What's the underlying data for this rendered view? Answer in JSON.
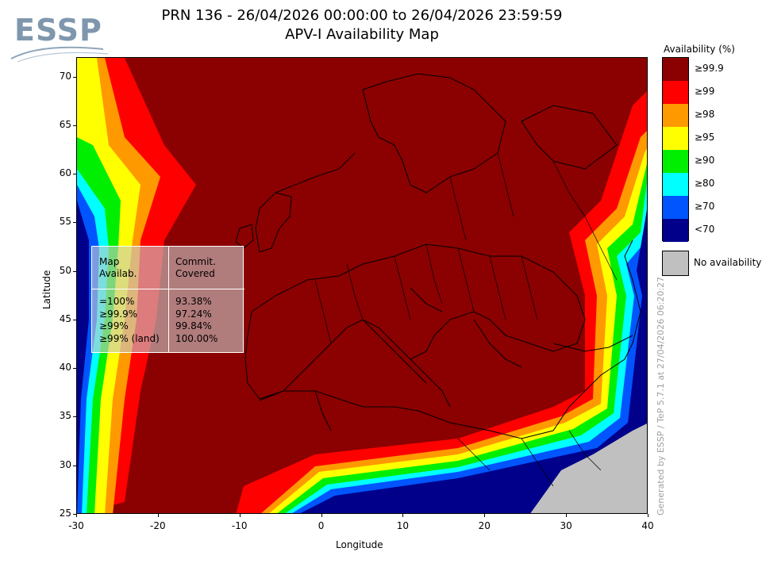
{
  "logo": {
    "text": "ESSP"
  },
  "title": {
    "line1": "PRN 136 - 26/04/2026 00:00:00 to 26/04/2026 23:59:59",
    "line2": "APV-I Availability Map"
  },
  "axes": {
    "xlabel": "Longitude",
    "ylabel": "Latitude",
    "x_ticks": [
      "-30",
      "-20",
      "-10",
      "0",
      "10",
      "20",
      "30",
      "40"
    ],
    "y_ticks": [
      "70",
      "65",
      "60",
      "55",
      "50",
      "45",
      "40",
      "35",
      "30",
      "25"
    ],
    "x_range": [
      -30,
      40
    ],
    "y_range": [
      25,
      72
    ]
  },
  "legend": {
    "title": "Availability (%)",
    "items": [
      {
        "label": "≥99.9",
        "color": "#8b0000"
      },
      {
        "label": "≥99",
        "color": "#ff0000"
      },
      {
        "label": "≥98",
        "color": "#ff9900"
      },
      {
        "label": "≥95",
        "color": "#ffff00"
      },
      {
        "label": "≥90",
        "color": "#00ee00"
      },
      {
        "label": "≥80",
        "color": "#00ffff"
      },
      {
        "label": "≥70",
        "color": "#0055ff"
      },
      {
        "label": "<70",
        "color": "#00008b"
      }
    ],
    "no_availability": {
      "label": "No availability",
      "color": "#c0c0c0"
    }
  },
  "stats": {
    "col1_header": [
      "Map",
      "Availab."
    ],
    "col2_header": [
      "Commit.",
      "Covered"
    ],
    "rows": [
      {
        "label": "=100%",
        "value": "93.38%"
      },
      {
        "label": "≥99.9%",
        "value": "97.24%"
      },
      {
        "label": "≥99%",
        "value": "99.84%"
      },
      {
        "label": "≥99% (land)",
        "value": "100.00%"
      }
    ]
  },
  "credit": "Generated by ESSP / TeP 5.7.1 at 27/04/2026 06:20:27"
}
